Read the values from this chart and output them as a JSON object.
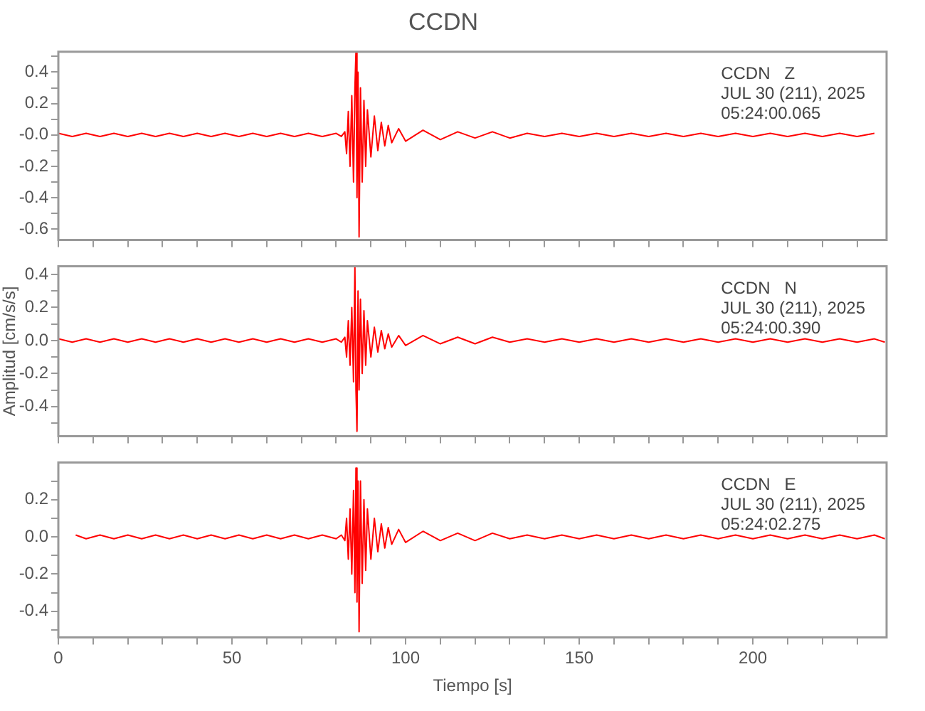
{
  "chart_data": [
    {
      "type": "line",
      "title": "CCDN",
      "annotations": [
        "CCDN   Z",
        "JUL 30 (211), 2025",
        "05:24:00.065"
      ],
      "xlim": [
        0,
        238.5
      ],
      "xticks": [
        {
          "value": 0,
          "label": null
        },
        {
          "value": 10,
          "label": null
        },
        {
          "value": 20,
          "label": null
        },
        {
          "value": 30,
          "label": null
        },
        {
          "value": 40,
          "label": null
        },
        {
          "value": 50,
          "label": null
        },
        {
          "value": 60,
          "label": null
        },
        {
          "value": 70,
          "label": null
        },
        {
          "value": 80,
          "label": null
        },
        {
          "value": 90,
          "label": null
        },
        {
          "value": 100,
          "label": null
        },
        {
          "value": 110,
          "label": null
        },
        {
          "value": 120,
          "label": null
        },
        {
          "value": 130,
          "label": null
        },
        {
          "value": 140,
          "label": null
        },
        {
          "value": 150,
          "label": null
        },
        {
          "value": 160,
          "label": null
        },
        {
          "value": 170,
          "label": null
        },
        {
          "value": 180,
          "label": null
        },
        {
          "value": 190,
          "label": null
        },
        {
          "value": 200,
          "label": null
        },
        {
          "value": 210,
          "label": null
        },
        {
          "value": 220,
          "label": null
        },
        {
          "value": 230,
          "label": null
        }
      ],
      "ylim": [
        -0.67,
        0.53
      ],
      "yticks": [
        {
          "value": 0.5,
          "label": null
        },
        {
          "value": 0.4,
          "label": "0.4"
        },
        {
          "value": 0.3,
          "label": null
        },
        {
          "value": 0.2,
          "label": "0.2"
        },
        {
          "value": 0.1,
          "label": null
        },
        {
          "value": 0,
          "label": "-0.0"
        },
        {
          "value": -0.1,
          "label": null
        },
        {
          "value": -0.2,
          "label": "-0.2"
        },
        {
          "value": -0.3,
          "label": null
        },
        {
          "value": -0.4,
          "label": "-0.4"
        },
        {
          "value": -0.5,
          "label": null
        },
        {
          "value": -0.6,
          "label": "-0.6"
        }
      ],
      "tick_labels": "y",
      "grid": false,
      "legend": false,
      "series": [
        {
          "color": "#ff0000",
          "x": [
            0,
            4,
            8,
            12,
            16,
            20,
            24,
            28,
            32,
            36,
            40,
            44,
            48,
            52,
            56,
            60,
            64,
            68,
            72,
            76,
            80,
            81.5,
            82.5,
            83,
            83.5,
            84,
            84.5,
            85,
            85.4,
            85.7,
            86,
            86.3,
            86.6,
            87,
            87.5,
            88,
            88.5,
            89,
            90,
            91,
            92,
            93,
            94,
            95,
            96,
            98,
            100,
            105,
            110,
            115,
            120,
            125,
            130,
            135,
            140,
            145,
            150,
            155,
            160,
            165,
            170,
            175,
            180,
            185,
            190,
            195,
            200,
            205,
            210,
            215,
            220,
            225,
            230,
            235
          ],
          "values": [
            0.01,
            -0.01,
            0.01,
            -0.01,
            0.01,
            -0.01,
            0.01,
            -0.01,
            0.01,
            -0.01,
            0.01,
            -0.01,
            0.01,
            -0.01,
            0.01,
            -0.01,
            0.01,
            -0.01,
            0.01,
            -0.01,
            0.01,
            -0.01,
            0.02,
            -0.12,
            0.15,
            -0.2,
            0.25,
            -0.3,
            0.3,
            0.53,
            -0.4,
            0.4,
            -0.65,
            0.3,
            -0.3,
            0.22,
            -0.2,
            0.16,
            -0.14,
            0.12,
            -0.1,
            0.08,
            -0.07,
            0.06,
            -0.05,
            0.04,
            -0.04,
            0.03,
            -0.03,
            0.02,
            -0.02,
            0.02,
            -0.02,
            0.01,
            -0.01,
            0.01,
            -0.01,
            0.01,
            -0.01,
            0.01,
            -0.01,
            0.01,
            -0.01,
            0.01,
            -0.01,
            0.01,
            -0.01,
            0.01,
            -0.01,
            0.01,
            -0.01,
            0.01,
            -0.01,
            0.01
          ]
        }
      ]
    },
    {
      "type": "line",
      "ylabel": "Amplitud [cm/s/s]",
      "annotations": [
        "CCDN   N",
        "JUL 30 (211), 2025",
        "05:24:00.390"
      ],
      "xlim": [
        0,
        238.5
      ],
      "xticks": [
        {
          "value": 0,
          "label": null
        },
        {
          "value": 10,
          "label": null
        },
        {
          "value": 20,
          "label": null
        },
        {
          "value": 30,
          "label": null
        },
        {
          "value": 40,
          "label": null
        },
        {
          "value": 50,
          "label": null
        },
        {
          "value": 60,
          "label": null
        },
        {
          "value": 70,
          "label": null
        },
        {
          "value": 80,
          "label": null
        },
        {
          "value": 90,
          "label": null
        },
        {
          "value": 100,
          "label": null
        },
        {
          "value": 110,
          "label": null
        },
        {
          "value": 120,
          "label": null
        },
        {
          "value": 130,
          "label": null
        },
        {
          "value": 140,
          "label": null
        },
        {
          "value": 150,
          "label": null
        },
        {
          "value": 160,
          "label": null
        },
        {
          "value": 170,
          "label": null
        },
        {
          "value": 180,
          "label": null
        },
        {
          "value": 190,
          "label": null
        },
        {
          "value": 200,
          "label": null
        },
        {
          "value": 210,
          "label": null
        },
        {
          "value": 220,
          "label": null
        },
        {
          "value": 230,
          "label": null
        }
      ],
      "ylim": [
        -0.58,
        0.45
      ],
      "yticks": [
        {
          "value": 0.4,
          "label": "0.4"
        },
        {
          "value": 0.3,
          "label": null
        },
        {
          "value": 0.2,
          "label": "0.2"
        },
        {
          "value": 0.1,
          "label": null
        },
        {
          "value": 0,
          "label": "0.0"
        },
        {
          "value": -0.1,
          "label": null
        },
        {
          "value": -0.2,
          "label": "-0.2"
        },
        {
          "value": -0.3,
          "label": null
        },
        {
          "value": -0.4,
          "label": "-0.4"
        },
        {
          "value": -0.5,
          "label": null
        }
      ],
      "tick_labels": "y",
      "grid": false,
      "legend": false,
      "series": [
        {
          "color": "#ff0000",
          "x": [
            0,
            4,
            8,
            12,
            16,
            20,
            24,
            28,
            32,
            36,
            40,
            44,
            48,
            52,
            56,
            60,
            64,
            68,
            72,
            76,
            80,
            81.5,
            82.5,
            83,
            83.5,
            84,
            84.5,
            85,
            85.4,
            85.7,
            86,
            86.3,
            86.6,
            87,
            87.5,
            88,
            88.5,
            89,
            90,
            91,
            92,
            93,
            94,
            95,
            96,
            98,
            100,
            105,
            110,
            115,
            120,
            125,
            130,
            135,
            140,
            145,
            150,
            155,
            160,
            165,
            170,
            175,
            180,
            185,
            190,
            195,
            200,
            205,
            210,
            215,
            220,
            225,
            230,
            235,
            238
          ],
          "values": [
            0.01,
            -0.01,
            0.01,
            -0.01,
            0.01,
            -0.01,
            0.01,
            -0.01,
            0.01,
            -0.01,
            0.01,
            -0.01,
            0.01,
            -0.01,
            0.01,
            -0.01,
            0.01,
            -0.01,
            0.01,
            -0.01,
            0.01,
            -0.01,
            0.02,
            -0.1,
            0.12,
            -0.15,
            0.2,
            -0.25,
            0.45,
            -0.3,
            -0.55,
            0.3,
            -0.3,
            0.25,
            -0.2,
            0.18,
            -0.15,
            0.12,
            -0.1,
            0.08,
            -0.07,
            0.06,
            -0.05,
            0.04,
            -0.04,
            0.03,
            -0.03,
            0.03,
            -0.02,
            0.02,
            -0.02,
            0.02,
            -0.01,
            0.01,
            -0.01,
            0.01,
            -0.01,
            0.01,
            -0.01,
            0.01,
            -0.01,
            0.01,
            -0.01,
            0.01,
            -0.01,
            0.01,
            -0.01,
            0.01,
            -0.01,
            0.01,
            -0.01,
            0.01,
            -0.01,
            0.01,
            -0.01
          ]
        }
      ]
    },
    {
      "type": "line",
      "xlabel": "Tiempo [s]",
      "annotations": [
        "CCDN   E",
        "JUL 30 (211), 2025",
        "05:24:02.275"
      ],
      "xlim": [
        0,
        238.5
      ],
      "xticks": [
        {
          "value": 0,
          "label": "0"
        },
        {
          "value": 10,
          "label": null
        },
        {
          "value": 20,
          "label": null
        },
        {
          "value": 30,
          "label": null
        },
        {
          "value": 40,
          "label": null
        },
        {
          "value": 50,
          "label": "50"
        },
        {
          "value": 60,
          "label": null
        },
        {
          "value": 70,
          "label": null
        },
        {
          "value": 80,
          "label": null
        },
        {
          "value": 90,
          "label": null
        },
        {
          "value": 100,
          "label": "100"
        },
        {
          "value": 110,
          "label": null
        },
        {
          "value": 120,
          "label": null
        },
        {
          "value": 130,
          "label": null
        },
        {
          "value": 140,
          "label": null
        },
        {
          "value": 150,
          "label": "150"
        },
        {
          "value": 160,
          "label": null
        },
        {
          "value": 170,
          "label": null
        },
        {
          "value": 180,
          "label": null
        },
        {
          "value": 190,
          "label": null
        },
        {
          "value": 200,
          "label": "200"
        },
        {
          "value": 210,
          "label": null
        },
        {
          "value": 220,
          "label": null
        },
        {
          "value": 230,
          "label": null
        }
      ],
      "ylim": [
        -0.54,
        0.4
      ],
      "yticks": [
        {
          "value": 0.3,
          "label": null
        },
        {
          "value": 0.2,
          "label": "0.2"
        },
        {
          "value": 0.1,
          "label": null
        },
        {
          "value": 0,
          "label": "0.0"
        },
        {
          "value": -0.1,
          "label": null
        },
        {
          "value": -0.2,
          "label": "-0.2"
        },
        {
          "value": -0.3,
          "label": null
        },
        {
          "value": -0.4,
          "label": "-0.4"
        },
        {
          "value": -0.5,
          "label": null
        }
      ],
      "grid": false,
      "legend": false,
      "series": [
        {
          "color": "#ff0000",
          "x": [
            5,
            8,
            12,
            16,
            20,
            24,
            28,
            32,
            36,
            40,
            44,
            48,
            52,
            56,
            60,
            64,
            68,
            72,
            76,
            80,
            81.5,
            82.5,
            83,
            83.5,
            84,
            84.5,
            85,
            85.4,
            85.7,
            86,
            86.3,
            86.6,
            87,
            87.5,
            88,
            88.5,
            89,
            90,
            91,
            92,
            93,
            94,
            95,
            96,
            98,
            100,
            105,
            110,
            115,
            120,
            125,
            130,
            135,
            140,
            145,
            150,
            155,
            160,
            165,
            170,
            175,
            180,
            185,
            190,
            195,
            200,
            205,
            210,
            215,
            220,
            225,
            230,
            235,
            238
          ],
          "values": [
            0.01,
            -0.01,
            0.01,
            -0.01,
            0.01,
            -0.01,
            0.01,
            -0.01,
            0.01,
            -0.01,
            0.01,
            -0.01,
            0.01,
            -0.01,
            0.01,
            -0.01,
            0.01,
            -0.01,
            0.01,
            -0.01,
            0.01,
            -0.02,
            0.1,
            -0.12,
            0.15,
            -0.2,
            0.25,
            -0.3,
            0.37,
            -0.35,
            0.3,
            -0.51,
            0.3,
            -0.25,
            0.2,
            -0.18,
            0.15,
            -0.12,
            0.1,
            -0.08,
            0.07,
            -0.06,
            0.05,
            -0.04,
            0.04,
            -0.03,
            0.03,
            -0.02,
            0.02,
            -0.02,
            0.02,
            -0.01,
            0.01,
            -0.01,
            0.01,
            -0.01,
            0.01,
            -0.01,
            0.01,
            -0.01,
            0.01,
            -0.01,
            0.01,
            -0.01,
            0.01,
            -0.01,
            0.01,
            -0.01,
            0.01,
            -0.01,
            0.01,
            -0.01,
            0.01,
            -0.01
          ]
        }
      ]
    }
  ]
}
